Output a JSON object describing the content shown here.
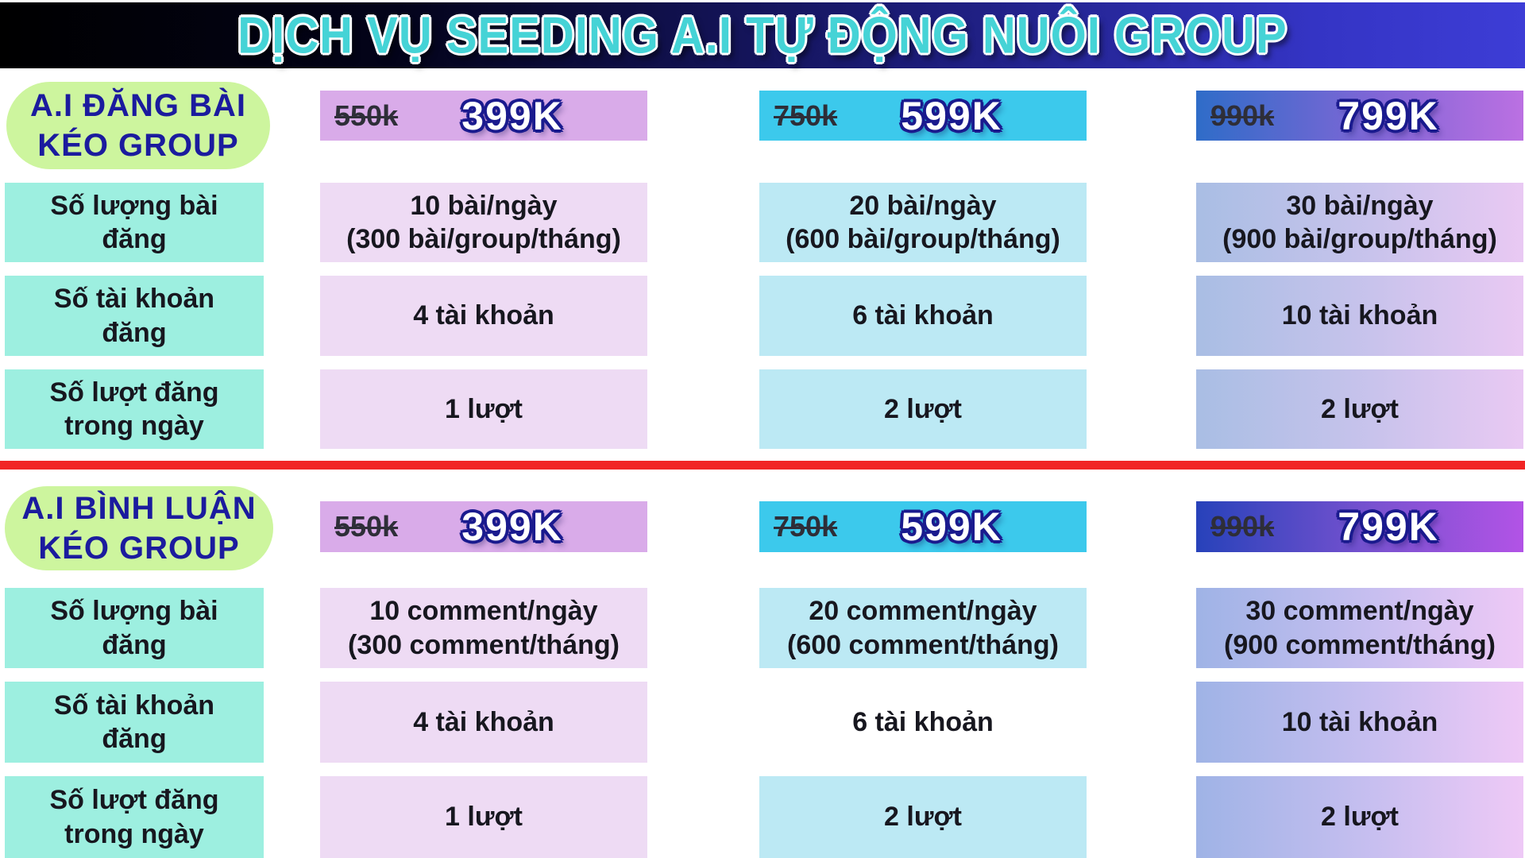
{
  "header": {
    "title": "DỊCH VỤ SEEDING A.I TỰ ĐỘNG NUÔI GROUP"
  },
  "row_labels": [
    "Số lượng bài\nđăng",
    "Số tài khoản\nđăng",
    "Số lượt đăng\ntrong ngày"
  ],
  "sections": [
    {
      "title": "A.I ĐĂNG BÀI\nKÉO GROUP",
      "plans": [
        {
          "old_price": "550k",
          "price": "399K",
          "rows": [
            "10 bài/ngày\n(300 bài/group/tháng)",
            "4 tài khoản",
            "1 lượt"
          ]
        },
        {
          "old_price": "750k",
          "price": "599K",
          "rows": [
            "20 bài/ngày\n(600 bài/group/tháng)",
            "6 tài khoản",
            "2 lượt"
          ]
        },
        {
          "old_price": "990k",
          "price": "799K",
          "rows": [
            "30 bài/ngày\n(900 bài/group/tháng)",
            "10 tài khoản",
            "2 lượt"
          ]
        }
      ]
    },
    {
      "title": "A.I BÌNH LUẬN\nKÉO GROUP",
      "plans": [
        {
          "old_price": "550k",
          "price": "399K",
          "rows": [
            "10 comment/ngày\n(300 comment/tháng)",
            "4 tài khoản",
            "1 lượt"
          ]
        },
        {
          "old_price": "750k",
          "price": "599K",
          "rows": [
            "20 comment/ngày\n(600 comment/tháng)",
            "6 tài khoản",
            "2 lượt"
          ]
        },
        {
          "old_price": "990k",
          "price": "799K",
          "rows": [
            "30 comment/ngày\n(900 comment/tháng)",
            "10 tài khoản",
            "2 lượt"
          ]
        }
      ]
    }
  ],
  "colors": {
    "header_bg_left": "#000000",
    "header_bg_right": "#3d3dd6",
    "header_text": "#45d3d6",
    "section_pill_bg": "#cdf59e",
    "section_pill_text": "#1b1b9e",
    "plan1_bg": "#d9abe9",
    "plan2_bg": "#3cc9ec",
    "plan3_bg_left": "#2f6cc8",
    "plan3_bg_right": "#bb70e2",
    "label_cell_bg": "#9defe0",
    "cell1_bg": "#eedbf4",
    "cell2_bg": "#bce9f4",
    "cell3_bg_left": "#a9bee4",
    "cell3_bg_right": "#e9c9f3",
    "divider": "#f12525",
    "price_text": "#ffffff",
    "price_outline": "#1a1a8e"
  }
}
